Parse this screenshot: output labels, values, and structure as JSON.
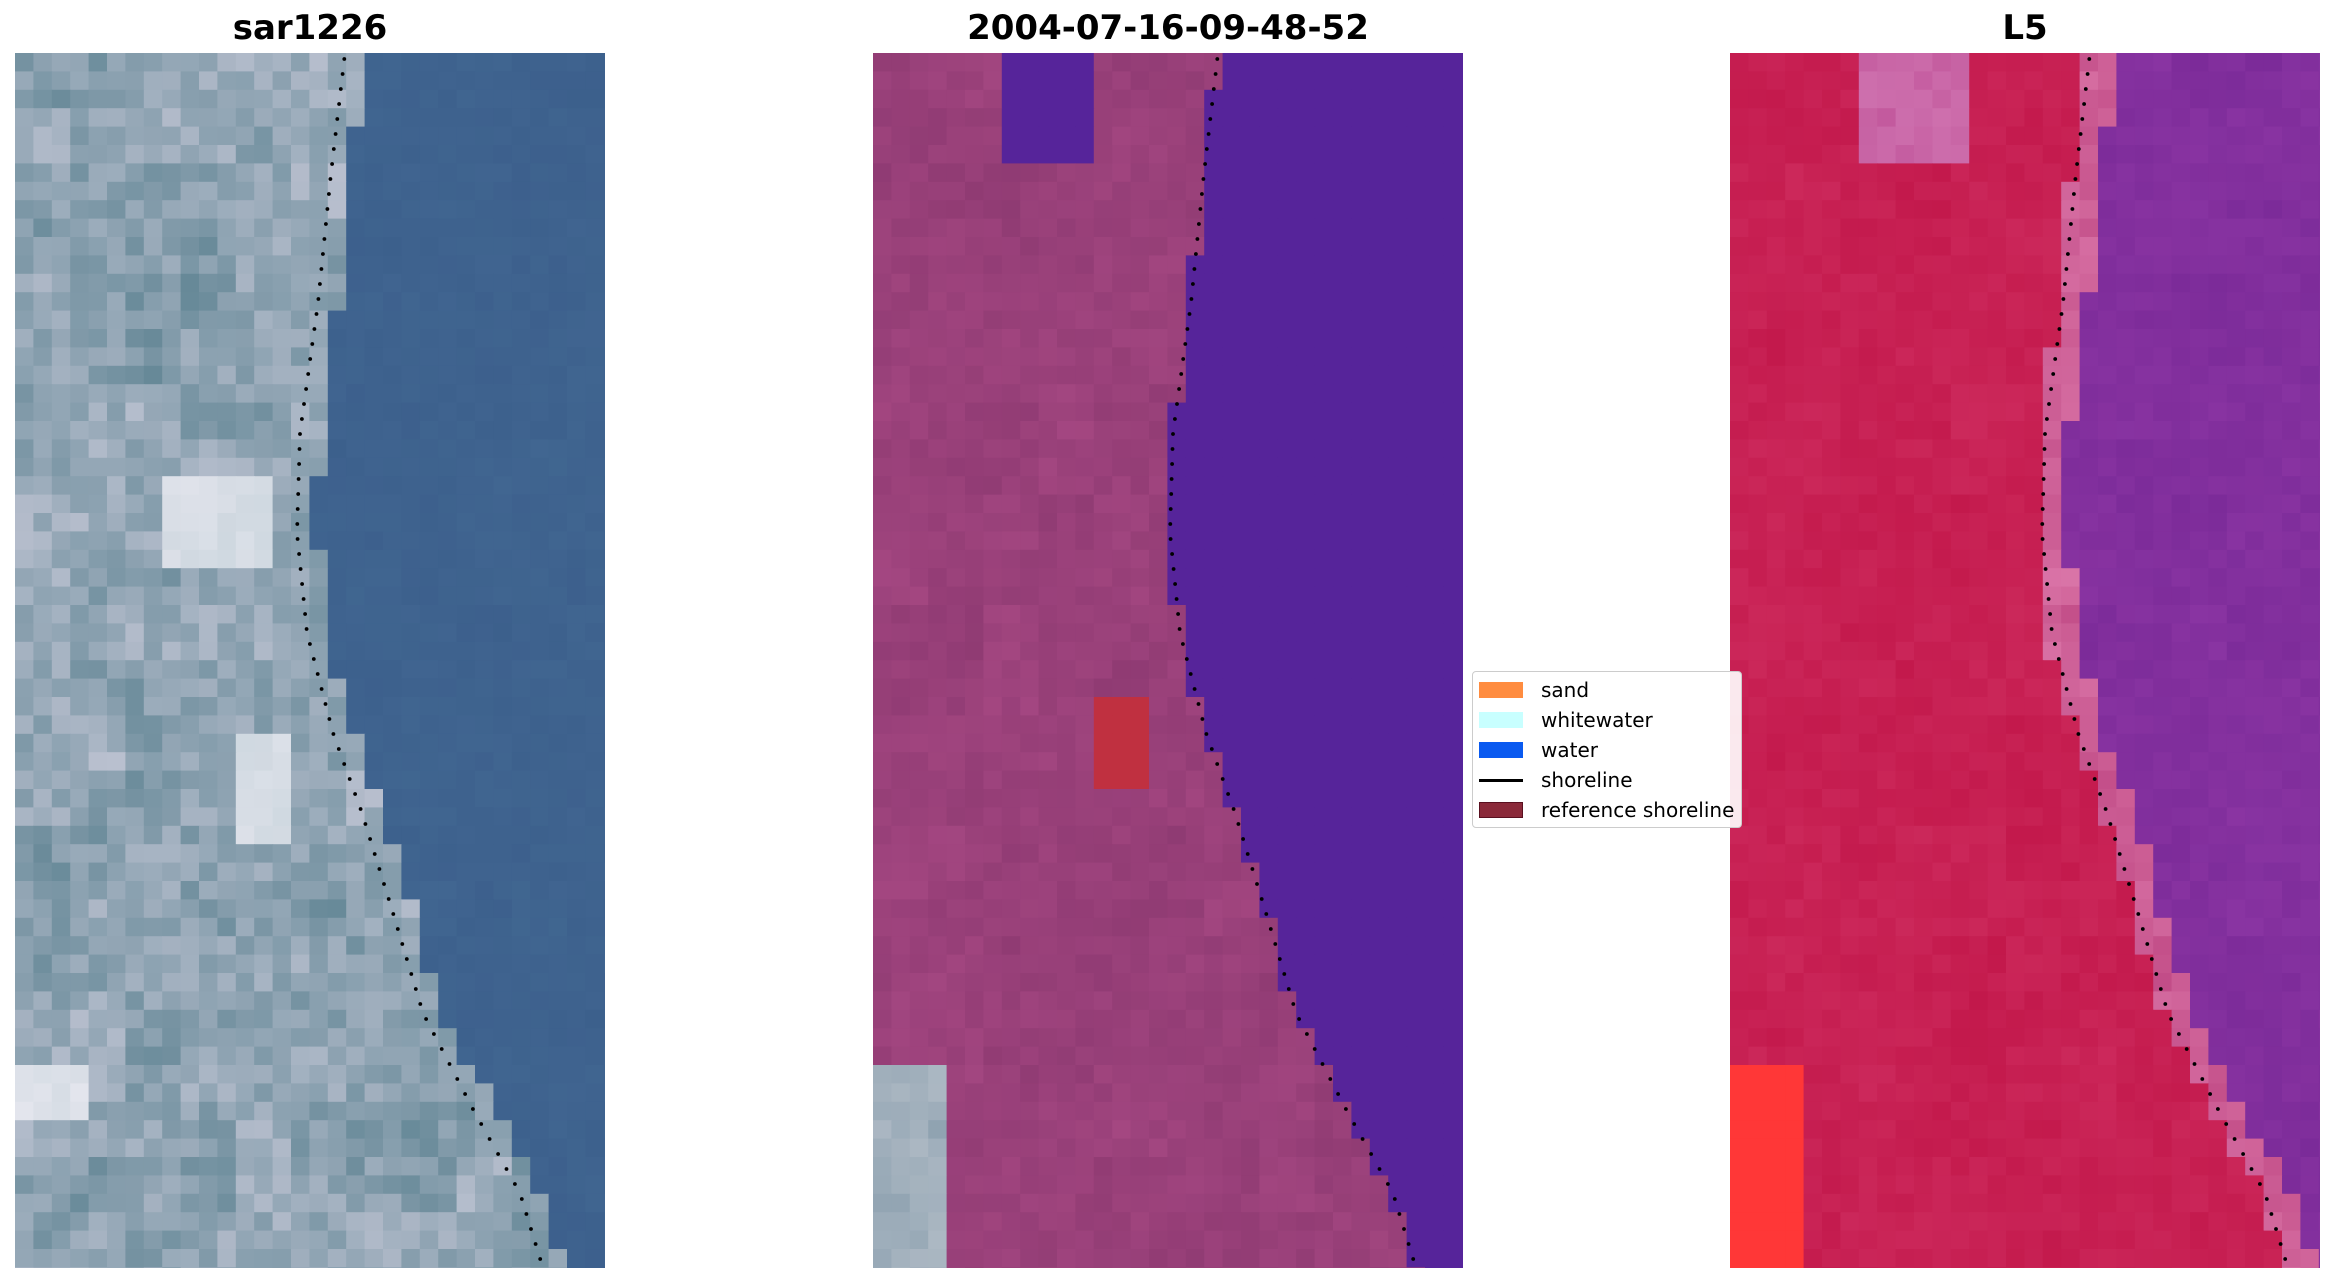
{
  "panels": [
    {
      "title": "sar1226",
      "palette": "rgb"
    },
    {
      "title": "2004-07-16-09-48-52",
      "palette": "classified"
    },
    {
      "title": "L5",
      "palette": "falsecolor"
    }
  ],
  "legend": {
    "placement": "center",
    "items": [
      {
        "label": "sand",
        "kind": "patch",
        "color": "#ff8c40",
        "border": "#ff8c40"
      },
      {
        "label": "whitewater",
        "kind": "patch",
        "color": "#c8ffff",
        "border": "#c8ffff"
      },
      {
        "label": "water",
        "kind": "patch",
        "color": "#0a5af0",
        "border": "#0a5af0"
      },
      {
        "label": "shoreline",
        "kind": "line",
        "color": "#000000"
      },
      {
        "label": "reference shoreline",
        "kind": "patch",
        "color": "#8b2a3a",
        "border": "#5a1020"
      }
    ]
  },
  "colors": {
    "sea_rgb": "#3c5f8c",
    "water_class": "#56249a",
    "land_class": "#8e3a72",
    "land_falsecolor": "#c2174a",
    "sea_falsecolor": "#7a2a98",
    "reference_patch": "#c03040",
    "shoreline": "#000000"
  }
}
